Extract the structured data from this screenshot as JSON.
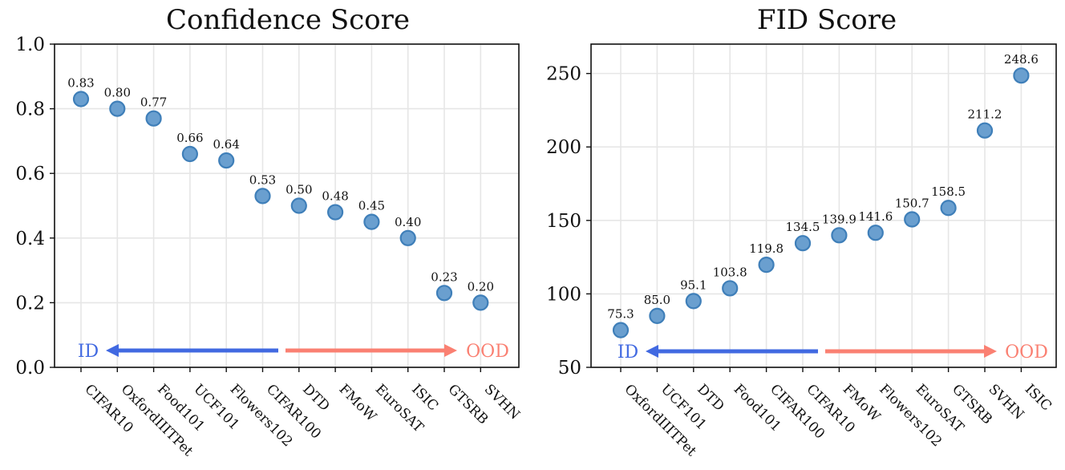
{
  "chart_data": [
    {
      "type": "scatter",
      "title": "Confidence Score",
      "categories": [
        "CIFAR10",
        "OxfordIIITPet",
        "Food101",
        "UCF101",
        "Flowers102",
        "CIFAR100",
        "DTD",
        "FMoW",
        "EuroSAT",
        "ISIC",
        "GTSRB",
        "SVHN"
      ],
      "values": [
        0.83,
        0.8,
        0.77,
        0.66,
        0.64,
        0.53,
        0.5,
        0.48,
        0.45,
        0.4,
        0.23,
        0.2
      ],
      "labels": [
        "0.83",
        "0.80",
        "0.77",
        "0.66",
        "0.64",
        "0.53",
        "0.50",
        "0.48",
        "0.45",
        "0.40",
        "0.23",
        "0.20"
      ],
      "ylim": [
        0.0,
        1.0
      ],
      "yticks": [
        0.0,
        0.2,
        0.4,
        0.6,
        0.8,
        1.0
      ],
      "ytick_labels": [
        "0.0",
        "0.2",
        "0.4",
        "0.6",
        "0.8",
        "1.0"
      ],
      "grid": true,
      "arrow": {
        "id_label": "ID",
        "ood_label": "OOD",
        "id_color": "#4169e1",
        "ood_color": "#fa8072"
      }
    },
    {
      "type": "scatter",
      "title": "FID Score",
      "categories": [
        "OxfordIIITPet",
        "UCF101",
        "DTD",
        "Food101",
        "CIFAR100",
        "CIFAR10",
        "FMoW",
        "Flowers102",
        "EuroSAT",
        "GTSRB",
        "SVHN",
        "ISIC"
      ],
      "values": [
        75.3,
        85.0,
        95.1,
        103.8,
        119.8,
        134.5,
        139.9,
        141.6,
        150.7,
        158.5,
        211.2,
        248.6
      ],
      "labels": [
        "75.3",
        "85.0",
        "95.1",
        "103.8",
        "119.8",
        "134.5",
        "139.9",
        "141.6",
        "150.7",
        "158.5",
        "211.2",
        "248.6"
      ],
      "ylim": [
        50,
        270
      ],
      "yticks": [
        50,
        100,
        150,
        200,
        250
      ],
      "ytick_labels": [
        "50",
        "100",
        "150",
        "200",
        "250"
      ],
      "grid": true,
      "arrow": {
        "id_label": "ID",
        "ood_label": "OOD",
        "id_color": "#4169e1",
        "ood_color": "#fa8072"
      }
    }
  ],
  "point_color": "#6a9fcf",
  "point_edge_color": "#3f7fb9"
}
